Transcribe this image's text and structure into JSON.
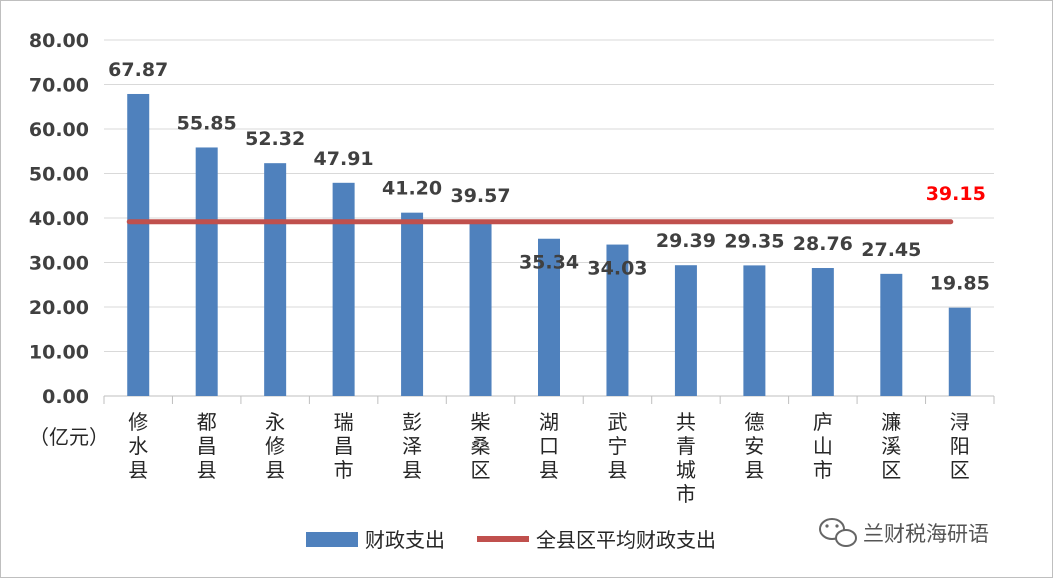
{
  "chart_data": {
    "type": "bar",
    "unit_label": "（亿元）",
    "categories": [
      "修水县",
      "都昌县",
      "永修县",
      "瑞昌市",
      "彭泽县",
      "柴桑区",
      "湖口县",
      "武宁县",
      "共青城市",
      "德安县",
      "庐山市",
      "濂溪区",
      "浔阳区"
    ],
    "series": [
      {
        "name": "财政支出",
        "type": "bar",
        "color": "#4f81bd",
        "values": [
          67.87,
          55.85,
          52.32,
          47.91,
          41.2,
          39.57,
          35.34,
          34.03,
          29.39,
          29.35,
          28.76,
          27.45,
          19.85
        ],
        "labels": [
          "67.87",
          "55.85",
          "52.32",
          "47.91",
          "41.20",
          "39.57",
          "35.34",
          "34.03",
          "29.39",
          "29.35",
          "28.76",
          "27.45",
          "19.85"
        ]
      },
      {
        "name": "全县区平均财政支出",
        "type": "line",
        "color": "#c0504d",
        "value": 39.15,
        "label": "39.15",
        "label_color": "#ff0000"
      }
    ],
    "ylim": [
      0,
      80
    ],
    "yticks": [
      "0.00",
      "10.00",
      "20.00",
      "30.00",
      "40.00",
      "50.00",
      "60.00",
      "70.00",
      "80.00"
    ],
    "grid": true,
    "legend_position": "bottom"
  },
  "watermark": "兰财税海研语"
}
